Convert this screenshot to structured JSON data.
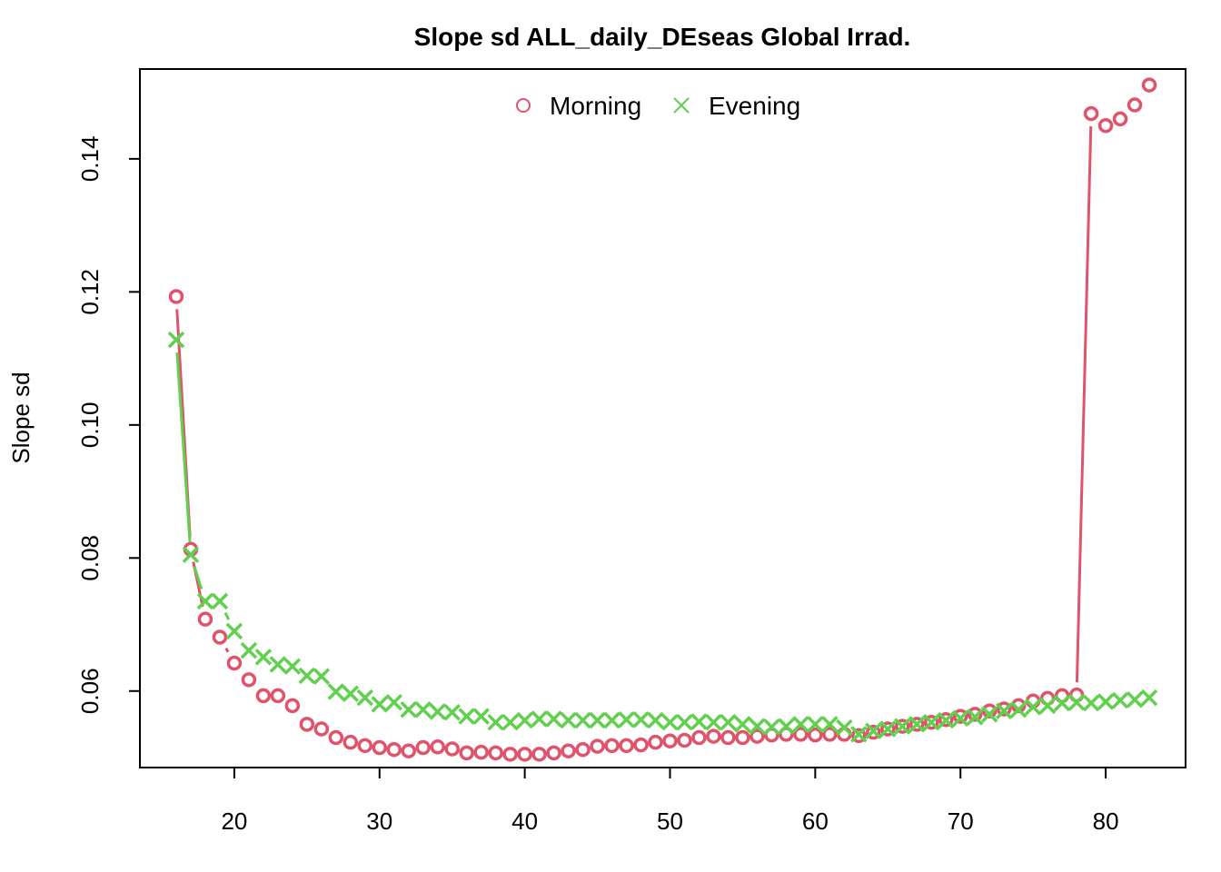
{
  "chart_data": {
    "type": "line",
    "title": "Slope sd ALL_daily_DEseas Global Irrad.",
    "xlabel": "",
    "ylabel": "Slope sd",
    "xlim": [
      13.5,
      85.5
    ],
    "ylim": [
      0.0485,
      0.1535
    ],
    "x_ticks": [
      20,
      30,
      40,
      50,
      60,
      70,
      80
    ],
    "y_ticks": [
      0.06,
      0.08,
      0.1,
      0.12,
      0.14
    ],
    "x_tick_labels": [
      "20",
      "30",
      "40",
      "50",
      "60",
      "70",
      "80"
    ],
    "y_tick_labels": [
      "0.06",
      "0.08",
      "0.10",
      "0.12",
      "0.14"
    ],
    "legend_position": "top",
    "series": [
      {
        "name": "Morning",
        "marker": "circle",
        "color": "#DF536B",
        "x": [
          16,
          17,
          18,
          19,
          20,
          21,
          22,
          23,
          24,
          25,
          26,
          27,
          28,
          29,
          30,
          31,
          32,
          33,
          34,
          35,
          36,
          37,
          38,
          39,
          40,
          41,
          42,
          43,
          44,
          45,
          46,
          47,
          48,
          49,
          50,
          51,
          52,
          53,
          54,
          55,
          56,
          57,
          58,
          59,
          60,
          61,
          62,
          63,
          64,
          65,
          66,
          67,
          68,
          69,
          70,
          71,
          72,
          73,
          74,
          75,
          76,
          77,
          78,
          79,
          80,
          81,
          82,
          83
        ],
        "values": [
          0.1193,
          0.0813,
          0.0708,
          0.0681,
          0.0642,
          0.0617,
          0.0593,
          0.0593,
          0.0578,
          0.055,
          0.0543,
          0.053,
          0.0523,
          0.0518,
          0.0515,
          0.0512,
          0.051,
          0.0515,
          0.0516,
          0.0513,
          0.0507,
          0.0508,
          0.0507,
          0.0505,
          0.0505,
          0.0505,
          0.0507,
          0.051,
          0.0512,
          0.0517,
          0.0518,
          0.0518,
          0.0519,
          0.0523,
          0.0525,
          0.0526,
          0.053,
          0.0532,
          0.053,
          0.053,
          0.0532,
          0.0534,
          0.0535,
          0.0535,
          0.0534,
          0.0535,
          0.0535,
          0.0533,
          0.0538,
          0.0543,
          0.0547,
          0.055,
          0.0553,
          0.0557,
          0.0562,
          0.0565,
          0.057,
          0.0573,
          0.0578,
          0.0585,
          0.0589,
          0.0593,
          0.0594,
          0.1468,
          0.145,
          0.146,
          0.1481,
          0.1511
        ]
      },
      {
        "name": "Evening",
        "marker": "cross",
        "color": "#61D04F",
        "x": [
          16,
          17,
          18,
          19,
          20,
          21,
          22,
          23,
          24,
          25,
          26,
          27,
          28,
          29,
          30,
          31,
          32,
          33,
          34,
          35,
          36,
          37,
          38,
          39,
          40,
          41,
          42,
          43,
          44,
          45,
          46,
          47,
          48,
          49,
          50,
          51,
          52,
          53,
          54,
          55,
          56,
          57,
          58,
          59,
          60,
          61,
          62,
          63,
          64,
          65,
          66,
          67,
          68,
          69,
          70,
          71,
          72,
          73,
          74,
          75,
          76,
          77,
          78,
          79,
          80,
          81,
          82,
          83
        ],
        "values": [
          0.1128,
          0.0805,
          0.0735,
          0.0735,
          0.069,
          0.0661,
          0.0651,
          0.064,
          0.0637,
          0.0623,
          0.0622,
          0.0599,
          0.0596,
          0.059,
          0.058,
          0.0583,
          0.0572,
          0.0572,
          0.0569,
          0.0568,
          0.0562,
          0.0562,
          0.0553,
          0.0553,
          0.0556,
          0.0558,
          0.0558,
          0.0556,
          0.0556,
          0.0556,
          0.0556,
          0.0557,
          0.0557,
          0.0556,
          0.0553,
          0.0553,
          0.0554,
          0.0553,
          0.0553,
          0.055,
          0.0547,
          0.0546,
          0.0547,
          0.055,
          0.055,
          0.055,
          0.0545,
          0.0535,
          0.054,
          0.0543,
          0.0547,
          0.055,
          0.0553,
          0.0556,
          0.0559,
          0.0561,
          0.0565,
          0.057,
          0.0572,
          0.0576,
          0.0578,
          0.0582,
          0.0583,
          0.0582,
          0.0584,
          0.0586,
          0.0587,
          0.059
        ]
      }
    ]
  }
}
